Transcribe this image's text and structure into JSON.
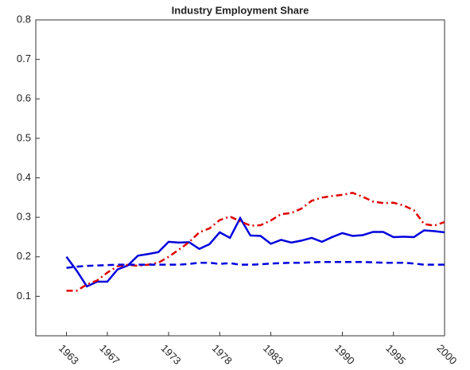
{
  "chart_data": {
    "type": "line",
    "title": "Industry Employment Share",
    "x": [
      1963,
      1964,
      1965,
      1966,
      1967,
      1968,
      1969,
      1970,
      1971,
      1972,
      1973,
      1974,
      1975,
      1976,
      1977,
      1978,
      1979,
      1980,
      1981,
      1982,
      1983,
      1984,
      1985,
      1986,
      1987,
      1988,
      1989,
      1990,
      1991,
      1992,
      1993,
      1994,
      1995,
      1996,
      1997,
      1998,
      1999,
      2000
    ],
    "series": [
      {
        "color": "#0000dd",
        "style": "solid",
        "values": [
          0.2,
          0.165,
          0.125,
          0.137,
          0.137,
          0.168,
          0.178,
          0.203,
          0.207,
          0.212,
          0.238,
          0.236,
          0.237,
          0.22,
          0.232,
          0.262,
          0.248,
          0.298,
          0.254,
          0.253,
          0.233,
          0.243,
          0.236,
          0.241,
          0.248,
          0.238,
          0.25,
          0.26,
          0.253,
          0.255,
          0.263,
          0.263,
          0.25,
          0.251,
          0.25,
          0.267,
          0.265,
          0.262
        ]
      },
      {
        "color": "#e00000",
        "style": "dashdot",
        "values": [
          0.114,
          0.114,
          0.13,
          0.14,
          0.16,
          0.176,
          0.18,
          0.177,
          0.18,
          0.185,
          0.2,
          0.218,
          0.237,
          0.262,
          0.272,
          0.293,
          0.302,
          0.29,
          0.279,
          0.28,
          0.292,
          0.308,
          0.311,
          0.322,
          0.342,
          0.35,
          0.354,
          0.357,
          0.362,
          0.352,
          0.34,
          0.336,
          0.337,
          0.33,
          0.318,
          0.283,
          0.279,
          0.288
        ]
      },
      {
        "color": "#0000dd",
        "style": "dashed",
        "values": [
          0.172,
          0.175,
          0.177,
          0.178,
          0.179,
          0.18,
          0.18,
          0.18,
          0.18,
          0.18,
          0.18,
          0.18,
          0.182,
          0.185,
          0.185,
          0.182,
          0.184,
          0.18,
          0.18,
          0.181,
          0.183,
          0.184,
          0.185,
          0.185,
          0.186,
          0.187,
          0.187,
          0.187,
          0.187,
          0.187,
          0.186,
          0.185,
          0.185,
          0.185,
          0.183,
          0.18,
          0.18,
          0.18
        ]
      }
    ],
    "xlim": [
      1960,
      2000
    ],
    "xticks": [
      1963,
      1967,
      1973,
      1978,
      1983,
      1990,
      1995,
      2000
    ],
    "ylim": [
      0,
      0.8
    ],
    "yticks": [
      0.1,
      0.2,
      0.3,
      0.4,
      0.5,
      0.6,
      0.7,
      0.8
    ],
    "grid": false
  }
}
